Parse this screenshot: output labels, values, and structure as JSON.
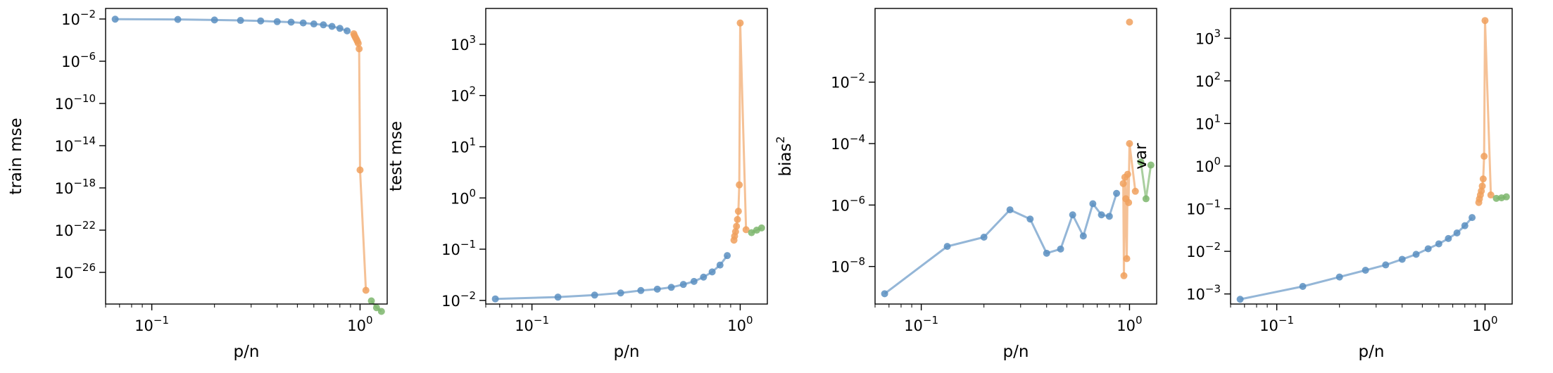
{
  "chart_data": [
    {
      "type": "line",
      "xscale": "log",
      "yscale": "log",
      "xlabel": "p/n",
      "ylabel": "train mse",
      "xlim": [
        0.06,
        1.35
      ],
      "ylim": [
        1e-29,
        0.1
      ],
      "xticks": [
        {
          "base": "10",
          "exp": "−1",
          "value": 0.1
        },
        {
          "base": "10",
          "exp": "0",
          "value": 1
        }
      ],
      "yticks": [
        {
          "base": "10",
          "exp": "−2",
          "value": 0.01
        },
        {
          "base": "10",
          "exp": "−6",
          "value": 1e-06
        },
        {
          "base": "10",
          "exp": "−10",
          "value": 1e-10
        },
        {
          "base": "10",
          "exp": "−14",
          "value": 1e-14
        },
        {
          "base": "10",
          "exp": "−18",
          "value": 1e-18
        },
        {
          "base": "10",
          "exp": "−22",
          "value": 1e-22
        },
        {
          "base": "10",
          "exp": "−26",
          "value": 1e-26
        }
      ],
      "series": [
        {
          "color": "#5b8fc1",
          "x": [
            0.0667,
            0.1333,
            0.2,
            0.2667,
            0.3333,
            0.4,
            0.4667,
            0.5333,
            0.6,
            0.6667,
            0.7333,
            0.8,
            0.8667
          ],
          "y": [
            0.0096,
            0.0091,
            0.0081,
            0.0073,
            0.0066,
            0.0056,
            0.005,
            0.0042,
            0.0034,
            0.0028,
            0.002,
            0.0013,
            0.00075
          ]
        },
        {
          "color": "#f0a05d",
          "x": [
            0.9333,
            0.94,
            0.95,
            0.96,
            0.97,
            0.98,
            0.99,
            1.0,
            1.0667
          ],
          "y": [
            0.0004,
            0.00027,
            0.00018,
            0.00012,
            8e-05,
            5e-05,
            1.5e-05,
            5e-17,
            2e-28
          ]
        },
        {
          "color": "#7cb66c",
          "x": [
            1.1333,
            1.2,
            1.2667
          ],
          "y": [
            2e-29,
            4.5e-30,
            2e-30
          ]
        }
      ]
    },
    {
      "type": "line",
      "xscale": "log",
      "yscale": "log",
      "xlabel": "p/n",
      "ylabel": "test mse",
      "xlim": [
        0.06,
        1.35
      ],
      "ylim": [
        0.0085,
        5000
      ],
      "xticks": [
        {
          "base": "10",
          "exp": "−1",
          "value": 0.1
        },
        {
          "base": "10",
          "exp": "0",
          "value": 1
        }
      ],
      "yticks": [
        {
          "base": "10",
          "exp": "−2",
          "value": 0.01
        },
        {
          "base": "10",
          "exp": "−1",
          "value": 0.1
        },
        {
          "base": "10",
          "exp": "0",
          "value": 1
        },
        {
          "base": "10",
          "exp": "1",
          "value": 10
        },
        {
          "base": "10",
          "exp": "2",
          "value": 100
        },
        {
          "base": "10",
          "exp": "3",
          "value": 1000
        }
      ],
      "series": [
        {
          "color": "#5b8fc1",
          "x": [
            0.0667,
            0.1333,
            0.2,
            0.2667,
            0.3333,
            0.4,
            0.4667,
            0.5333,
            0.6,
            0.6667,
            0.7333,
            0.8,
            0.8667
          ],
          "y": [
            0.0107,
            0.0116,
            0.0127,
            0.014,
            0.0156,
            0.0166,
            0.018,
            0.0205,
            0.0235,
            0.0285,
            0.036,
            0.049,
            0.075
          ]
        },
        {
          "color": "#f0a05d",
          "x": [
            0.9333,
            0.94,
            0.95,
            0.96,
            0.97,
            0.98,
            0.99,
            1.0,
            1.0667
          ],
          "y": [
            0.15,
            0.18,
            0.22,
            0.28,
            0.38,
            0.55,
            1.8,
            2600,
            0.24
          ]
        },
        {
          "color": "#7cb66c",
          "x": [
            1.1333,
            1.2,
            1.2667
          ],
          "y": [
            0.21,
            0.235,
            0.26
          ]
        }
      ]
    },
    {
      "type": "line",
      "xscale": "log",
      "yscale": "log",
      "xlabel": "p/n",
      "ylabel": "bias",
      "ylabel_sup": "2",
      "xlim": [
        0.06,
        1.35
      ],
      "ylim": [
        6e-10,
        2.5
      ],
      "xticks": [
        {
          "base": "10",
          "exp": "−1",
          "value": 0.1
        },
        {
          "base": "10",
          "exp": "0",
          "value": 1
        }
      ],
      "yticks": [
        {
          "base": "10",
          "exp": "−8",
          "value": 1e-08
        },
        {
          "base": "10",
          "exp": "−6",
          "value": 1e-06
        },
        {
          "base": "10",
          "exp": "−4",
          "value": 0.0001
        },
        {
          "base": "10",
          "exp": "−2",
          "value": 0.01
        }
      ],
      "series": [
        {
          "color": "#5b8fc1",
          "x": [
            0.0667,
            0.1333,
            0.2,
            0.2667,
            0.3333,
            0.4,
            0.4667,
            0.5333,
            0.6,
            0.6667,
            0.7333,
            0.8,
            0.8667
          ],
          "y": [
            1.3e-09,
            4.5e-08,
            9e-08,
            7e-07,
            3.5e-07,
            2.7e-08,
            3.7e-08,
            4.8e-07,
            9.8e-08,
            1.1e-06,
            4.8e-07,
            4.3e-07,
            2.4e-06
          ]
        },
        {
          "color": "#f0a05d",
          "x": [
            0.9333,
            0.94,
            0.95,
            0.96,
            0.97,
            0.98,
            0.99,
            1.0,
            1.0667
          ],
          "y": [
            5e-06,
            5e-09,
            8e-06,
            1.6e-06,
            1.8e-08,
            1e-05,
            1.2e-06,
            0.0001,
            2.8e-06
          ]
        },
        {
          "color": "#7cb66c",
          "x": [
            1.1333,
            1.2,
            1.2667
          ],
          "y": [
            2.5e-05,
            1.6e-06,
            2e-05
          ]
        }
      ],
      "extra_points": [
        {
          "x": 1.0,
          "y": 0.9,
          "color": "#f0a05d"
        }
      ]
    },
    {
      "type": "line",
      "xscale": "log",
      "yscale": "log",
      "xlabel": "p/n",
      "ylabel": "var",
      "xlim": [
        0.06,
        1.35
      ],
      "ylim": [
        0.00058,
        5000
      ],
      "xticks": [
        {
          "base": "10",
          "exp": "−1",
          "value": 0.1
        },
        {
          "base": "10",
          "exp": "0",
          "value": 1
        }
      ],
      "yticks": [
        {
          "base": "10",
          "exp": "−3",
          "value": 0.001
        },
        {
          "base": "10",
          "exp": "−2",
          "value": 0.01
        },
        {
          "base": "10",
          "exp": "−1",
          "value": 0.1
        },
        {
          "base": "10",
          "exp": "0",
          "value": 1
        },
        {
          "base": "10",
          "exp": "1",
          "value": 10
        },
        {
          "base": "10",
          "exp": "2",
          "value": 100
        },
        {
          "base": "10",
          "exp": "3",
          "value": 1000
        }
      ],
      "series": [
        {
          "color": "#5b8fc1",
          "x": [
            0.0667,
            0.1333,
            0.2,
            0.2667,
            0.3333,
            0.4,
            0.4667,
            0.5333,
            0.6,
            0.6667,
            0.7333,
            0.8,
            0.8667
          ],
          "y": [
            0.00075,
            0.0015,
            0.0025,
            0.0036,
            0.0048,
            0.0065,
            0.0085,
            0.0115,
            0.015,
            0.02,
            0.027,
            0.04,
            0.062
          ]
        },
        {
          "color": "#f0a05d",
          "x": [
            0.9333,
            0.94,
            0.95,
            0.96,
            0.97,
            0.98,
            0.99,
            1.0,
            1.0667
          ],
          "y": [
            0.14,
            0.17,
            0.21,
            0.26,
            0.34,
            0.5,
            1.7,
            2600,
            0.21
          ]
        },
        {
          "color": "#7cb66c",
          "x": [
            1.1333,
            1.2,
            1.2667
          ],
          "y": [
            0.175,
            0.18,
            0.19
          ]
        }
      ]
    }
  ]
}
